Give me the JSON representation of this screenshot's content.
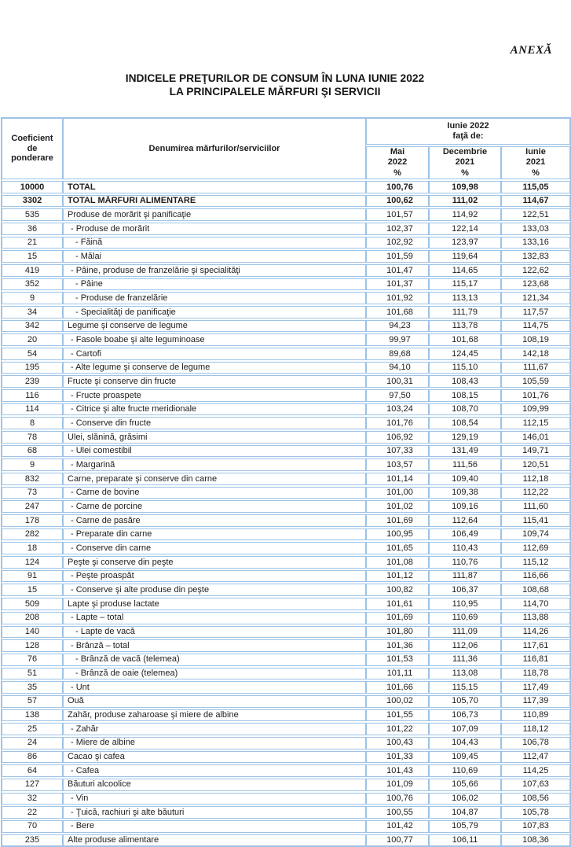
{
  "annex": "ANEXĂ",
  "title": {
    "line1": "INDICELE PREŢURILOR DE CONSUM ÎN LUNA IUNIE 2022",
    "line2": "LA PRINCIPALELE MĂRFURI ŞI SERVICII"
  },
  "colors": {
    "border": "#9dc3e6",
    "text": "#1d1d1f"
  },
  "table": {
    "header": {
      "col_weight": "Coeficient\nde\nponderare",
      "col_name": "Denumirea mărfurilor/serviciilor",
      "group": "Iunie 2022\nfaţă de:",
      "sub_mai": "Mai\n2022\n%",
      "sub_dec": "Decembrie\n2021\n%",
      "sub_iun": "Iunie\n2021\n%"
    },
    "rows": [
      {
        "coef": "10000",
        "name": "TOTAL",
        "indent": 0,
        "bold": true,
        "values": [
          "100,76",
          "109,98",
          "115,05"
        ]
      },
      {
        "coef": "3302",
        "name": "TOTAL MĂRFURI ALIMENTARE",
        "indent": 0,
        "bold": true,
        "values": [
          "100,62",
          "111,02",
          "114,67"
        ]
      },
      {
        "coef": "535",
        "name": "Produse de morărit şi panificaţie",
        "indent": 0,
        "bold": false,
        "values": [
          "101,57",
          "114,92",
          "122,51"
        ]
      },
      {
        "coef": "36",
        "name": "- Produse de morărit",
        "indent": 1,
        "bold": false,
        "values": [
          "102,37",
          "122,14",
          "133,03"
        ]
      },
      {
        "coef": "21",
        "name": "- Făină",
        "indent": 2,
        "bold": false,
        "values": [
          "102,92",
          "123,97",
          "133,16"
        ]
      },
      {
        "coef": "15",
        "name": "- Mălai",
        "indent": 2,
        "bold": false,
        "values": [
          "101,59",
          "119,64",
          "132,83"
        ]
      },
      {
        "coef": "419",
        "name": "- Pâine, produse de franzelărie şi specialităţi",
        "indent": 1,
        "bold": false,
        "values": [
          "101,47",
          "114,65",
          "122,62"
        ]
      },
      {
        "coef": "352",
        "name": "- Pâine",
        "indent": 2,
        "bold": false,
        "values": [
          "101,37",
          "115,17",
          "123,68"
        ]
      },
      {
        "coef": "9",
        "name": "- Produse de franzelărie",
        "indent": 2,
        "bold": false,
        "values": [
          "101,92",
          "113,13",
          "121,34"
        ]
      },
      {
        "coef": "34",
        "name": "- Specialităţi de panificaţie",
        "indent": 2,
        "bold": false,
        "values": [
          "101,68",
          "111,79",
          "117,57"
        ]
      },
      {
        "coef": "342",
        "name": "Legume şi conserve de legume",
        "indent": 0,
        "bold": false,
        "values": [
          "94,23",
          "113,78",
          "114,75"
        ]
      },
      {
        "coef": "20",
        "name": "- Fasole boabe şi alte leguminoase",
        "indent": 1,
        "bold": false,
        "values": [
          "99,97",
          "101,68",
          "108,19"
        ]
      },
      {
        "coef": "54",
        "name": "- Cartofi",
        "indent": 1,
        "bold": false,
        "values": [
          "89,68",
          "124,45",
          "142,18"
        ]
      },
      {
        "coef": "195",
        "name": "- Alte legume şi conserve de legume",
        "indent": 1,
        "bold": false,
        "values": [
          "94,10",
          "115,10",
          "111,67"
        ]
      },
      {
        "coef": "239",
        "name": "Fructe şi conserve din fructe",
        "indent": 0,
        "bold": false,
        "values": [
          "100,31",
          "108,43",
          "105,59"
        ]
      },
      {
        "coef": "116",
        "name": "- Fructe proaspete",
        "indent": 1,
        "bold": false,
        "values": [
          "97,50",
          "108,15",
          "101,76"
        ]
      },
      {
        "coef": "114",
        "name": "- Citrice şi alte fructe meridionale",
        "indent": 1,
        "bold": false,
        "values": [
          "103,24",
          "108,70",
          "109,99"
        ]
      },
      {
        "coef": "8",
        "name": "- Conserve din fructe",
        "indent": 1,
        "bold": false,
        "values": [
          "101,76",
          "108,54",
          "112,15"
        ]
      },
      {
        "coef": "78",
        "name": "Ulei, slănină, grăsimi",
        "indent": 0,
        "bold": false,
        "values": [
          "106,92",
          "129,19",
          "146,01"
        ]
      },
      {
        "coef": "68",
        "name": "- Ulei comestibil",
        "indent": 1,
        "bold": false,
        "values": [
          "107,33",
          "131,49",
          "149,71"
        ]
      },
      {
        "coef": "9",
        "name": "- Margarină",
        "indent": 1,
        "bold": false,
        "values": [
          "103,57",
          "111,56",
          "120,51"
        ]
      },
      {
        "coef": "832",
        "name": "Carne, preparate şi conserve din carne",
        "indent": 0,
        "bold": false,
        "values": [
          "101,14",
          "109,40",
          "112,18"
        ]
      },
      {
        "coef": "73",
        "name": "- Carne de bovine",
        "indent": 1,
        "bold": false,
        "values": [
          "101,00",
          "109,38",
          "112,22"
        ]
      },
      {
        "coef": "247",
        "name": "- Carne de porcine",
        "indent": 1,
        "bold": false,
        "values": [
          "101,02",
          "109,16",
          "111,60"
        ]
      },
      {
        "coef": "178",
        "name": "- Carne de pasăre",
        "indent": 1,
        "bold": false,
        "values": [
          "101,69",
          "112,64",
          "115,41"
        ]
      },
      {
        "coef": "282",
        "name": "- Preparate din carne",
        "indent": 1,
        "bold": false,
        "values": [
          "100,95",
          "106,49",
          "109,74"
        ]
      },
      {
        "coef": "18",
        "name": "- Conserve din carne",
        "indent": 1,
        "bold": false,
        "values": [
          "101,65",
          "110,43",
          "112,69"
        ]
      },
      {
        "coef": "124",
        "name": "Peşte şi conserve din peşte",
        "indent": 0,
        "bold": false,
        "values": [
          "101,08",
          "110,76",
          "115,12"
        ]
      },
      {
        "coef": "91",
        "name": "- Peşte proaspăt",
        "indent": 1,
        "bold": false,
        "values": [
          "101,12",
          "111,87",
          "116,66"
        ]
      },
      {
        "coef": "15",
        "name": "- Conserve şi alte produse din peşte",
        "indent": 1,
        "bold": false,
        "values": [
          "100,82",
          "106,37",
          "108,68"
        ]
      },
      {
        "coef": "509",
        "name": "Lapte şi produse lactate",
        "indent": 0,
        "bold": false,
        "values": [
          "101,61",
          "110,95",
          "114,70"
        ]
      },
      {
        "coef": "208",
        "name": "- Lapte – total",
        "indent": 1,
        "bold": false,
        "values": [
          "101,69",
          "110,69",
          "113,88"
        ]
      },
      {
        "coef": "140",
        "name": "- Lapte de vacă",
        "indent": 2,
        "bold": false,
        "values": [
          "101,80",
          "111,09",
          "114,26"
        ]
      },
      {
        "coef": "128",
        "name": "- Brânză – total",
        "indent": 1,
        "bold": false,
        "values": [
          "101,36",
          "112,06",
          "117,61"
        ]
      },
      {
        "coef": "76",
        "name": "- Brânză de vacă (telemea)",
        "indent": 2,
        "bold": false,
        "values": [
          "101,53",
          "111,36",
          "116,81"
        ]
      },
      {
        "coef": "51",
        "name": "- Brânză de oaie (telemea)",
        "indent": 2,
        "bold": false,
        "values": [
          "101,11",
          "113,08",
          "118,78"
        ]
      },
      {
        "coef": "35",
        "name": "- Unt",
        "indent": 1,
        "bold": false,
        "values": [
          "101,66",
          "115,15",
          "117,49"
        ]
      },
      {
        "coef": "57",
        "name": "Ouă",
        "indent": 0,
        "bold": false,
        "values": [
          "100,02",
          "105,70",
          "117,39"
        ]
      },
      {
        "coef": "138",
        "name": "Zahăr, produse zaharoase şi miere de albine",
        "indent": 0,
        "bold": false,
        "values": [
          "101,55",
          "106,73",
          "110,89"
        ]
      },
      {
        "coef": "25",
        "name": "- Zahăr",
        "indent": 1,
        "bold": false,
        "values": [
          "101,22",
          "107,09",
          "118,12"
        ]
      },
      {
        "coef": "24",
        "name": "- Miere de albine",
        "indent": 1,
        "bold": false,
        "values": [
          "100,43",
          "104,43",
          "106,78"
        ]
      },
      {
        "coef": "86",
        "name": "Cacao şi cafea",
        "indent": 0,
        "bold": false,
        "values": [
          "101,33",
          "109,45",
          "112,47"
        ]
      },
      {
        "coef": "64",
        "name": "- Cafea",
        "indent": 1,
        "bold": false,
        "values": [
          "101,43",
          "110,69",
          "114,25"
        ]
      },
      {
        "coef": "127",
        "name": "Băuturi alcoolice",
        "indent": 0,
        "bold": false,
        "values": [
          "101,09",
          "105,66",
          "107,63"
        ]
      },
      {
        "coef": "32",
        "name": "- Vin",
        "indent": 1,
        "bold": false,
        "values": [
          "100,76",
          "106,02",
          "108,56"
        ]
      },
      {
        "coef": "22",
        "name": "- Ţuică, rachiuri şi alte băuturi",
        "indent": 1,
        "bold": false,
        "values": [
          "100,55",
          "104,87",
          "105,78"
        ]
      },
      {
        "coef": "70",
        "name": "- Bere",
        "indent": 1,
        "bold": false,
        "values": [
          "101,42",
          "105,79",
          "107,83"
        ]
      },
      {
        "coef": "235",
        "name": "Alte produse alimentare",
        "indent": 0,
        "bold": false,
        "values": [
          "100,77",
          "106,11",
          "108,36"
        ]
      }
    ]
  }
}
